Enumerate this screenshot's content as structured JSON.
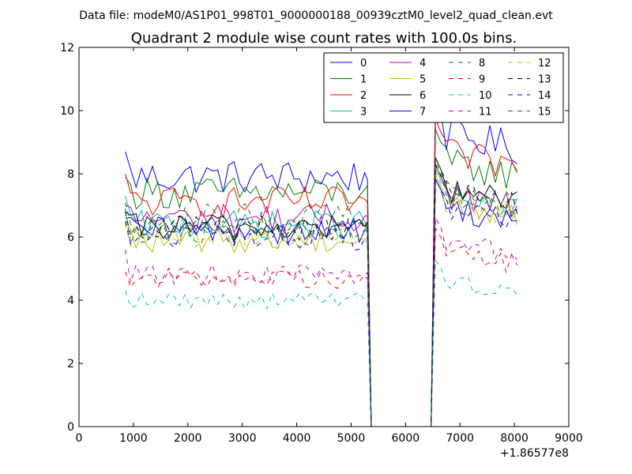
{
  "chart_data": {
    "type": "line",
    "suptitle": "Data file: modeM0/AS1P01_998T01_9000000188_00939cztM0_level2_quad_clean.evt",
    "title": "Quadrant 2 module wise count rates with 100.0s bins.",
    "xlabel": "",
    "ylabel": "",
    "x_offset_label": "+1.86577e8",
    "xlim": [
      0,
      9000
    ],
    "ylim": [
      0,
      12
    ],
    "xticks": [
      0,
      1000,
      2000,
      3000,
      4000,
      5000,
      6000,
      7000,
      8000,
      9000
    ],
    "yticks": [
      0,
      2,
      4,
      6,
      8,
      10,
      12
    ],
    "legend_position": "top-right",
    "series": [
      {
        "name": "0",
        "color": "#0000ff",
        "dash": "solid",
        "level1": 7.9,
        "level2": 9.3,
        "start": 8.7
      },
      {
        "name": "1",
        "color": "#008000",
        "dash": "solid",
        "level1": 7.4,
        "level2": 8.4,
        "start": 7.9
      },
      {
        "name": "2",
        "color": "#ff0000",
        "dash": "solid",
        "level1": 7.1,
        "level2": 8.7,
        "start": 8.0
      },
      {
        "name": "3",
        "color": "#00bfbf",
        "dash": "solid",
        "level1": 6.4,
        "level2": 7.3,
        "start": 7.3
      },
      {
        "name": "4",
        "color": "#bf00bf",
        "dash": "solid",
        "level1": 6.6,
        "level2": 7.4,
        "start": 7.0
      },
      {
        "name": "5",
        "color": "#bfbf00",
        "dash": "solid",
        "level1": 5.9,
        "level2": 7.1,
        "start": 6.5
      },
      {
        "name": "6",
        "color": "#000000",
        "dash": "solid",
        "level1": 6.3,
        "level2": 7.6,
        "start": 6.8
      },
      {
        "name": "7",
        "color": "#0000ff",
        "dash": "solid",
        "level1": 6.2,
        "level2": 7.0,
        "start": 6.6
      },
      {
        "name": "8",
        "color": "#008000",
        "dash": "dashed",
        "level1": 6.2,
        "level2": 7.5,
        "start": 6.9
      },
      {
        "name": "9",
        "color": "#ff0000",
        "dash": "dashed",
        "level1": 4.7,
        "level2": 5.6,
        "start": 4.9
      },
      {
        "name": "10",
        "color": "#00bfbf",
        "dash": "dashed",
        "level1": 4.0,
        "level2": 4.7,
        "start": 4.3
      },
      {
        "name": "11",
        "color": "#bf00bf",
        "dash": "dashed",
        "level1": 4.8,
        "level2": 5.9,
        "start": 5.6
      },
      {
        "name": "12",
        "color": "#bfbf00",
        "dash": "dashed",
        "level1": 6.0,
        "level2": 7.2,
        "start": 6.4
      },
      {
        "name": "13",
        "color": "#000000",
        "dash": "dashed",
        "level1": 6.3,
        "level2": 7.4,
        "start": 6.8
      },
      {
        "name": "14",
        "color": "#0000ff",
        "dash": "dashed",
        "level1": 6.0,
        "level2": 7.0,
        "start": 6.5
      },
      {
        "name": "15",
        "color": "#008000",
        "dash": "dashed",
        "level1": 6.6,
        "level2": 7.6,
        "start": 7.1
      }
    ]
  }
}
